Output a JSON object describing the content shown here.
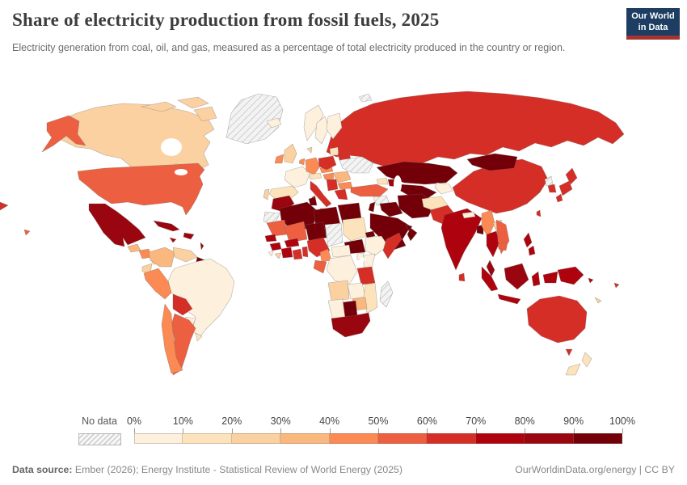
{
  "header": {
    "title": "Share of electricity production from fossil fuels, 2025",
    "subtitle": "Electricity generation from coal, oil, and gas, measured as a percentage of total electricity produced in the country or region."
  },
  "logo": {
    "line1": "Our World",
    "line2": "in Data",
    "bg_color": "#1d3d63",
    "stripe_color": "#a5332f"
  },
  "footer": {
    "source_label": "Data source:",
    "source_text": " Ember (2026); Energy Institute - Statistical Review of World Energy (2025)",
    "link_text": "OurWorldinData.org/energy | CC BY"
  },
  "chart_data": {
    "type": "choropleth",
    "title": "Share of electricity production from fossil fuels, 2025",
    "unit": "%",
    "projection": "world map, equirectangular style, Antarctica omitted",
    "legend": {
      "no_data_label": "No data",
      "ticks": [
        "0%",
        "10%",
        "20%",
        "30%",
        "40%",
        "50%",
        "60%",
        "70%",
        "80%",
        "90%",
        "100%"
      ],
      "bin_colors": [
        "#fdf0dd",
        "#fce3bc",
        "#fbd1a2",
        "#fab77e",
        "#fb8a55",
        "#ec6041",
        "#d52e27",
        "#ae030e",
        "#9a0610",
        "#730009"
      ],
      "no_data_pattern": "gray diagonal hatch"
    },
    "regions": [
      {
        "id": "russia",
        "name": "Russia",
        "bin": 6,
        "range": "60-70%"
      },
      {
        "id": "canada",
        "name": "Canada",
        "bin": 2,
        "range": "20-30%"
      },
      {
        "id": "canada-arctic-1",
        "name": "Canada (Arctic islands)",
        "bin": 2,
        "range": "20-30%"
      },
      {
        "id": "canada-arctic-2",
        "name": "Canada (Arctic islands)",
        "bin": 2,
        "range": "20-30%"
      },
      {
        "id": "baffin-island",
        "name": "Canada (Baffin Island)",
        "bin": 2,
        "range": "20-30%"
      },
      {
        "id": "greenland",
        "name": "Greenland",
        "bin": null,
        "range": "No data"
      },
      {
        "id": "svalbard",
        "name": "Svalbard",
        "bin": null,
        "range": "No data"
      },
      {
        "id": "alaska",
        "name": "United States (Alaska)",
        "bin": 5,
        "range": "50-60%"
      },
      {
        "id": "united-states",
        "name": "United States",
        "bin": 5,
        "range": "50-60%"
      },
      {
        "id": "hawaii",
        "name": "United States (Hawaii)",
        "bin": 5,
        "range": "50-60%"
      },
      {
        "id": "mexico",
        "name": "Mexico",
        "bin": 8,
        "range": "80-90%"
      },
      {
        "id": "guatemala",
        "name": "Guatemala",
        "bin": 3,
        "range": "30-40%"
      },
      {
        "id": "nicaragua",
        "name": "Nicaragua & Honduras",
        "bin": 4,
        "range": "40-50%"
      },
      {
        "id": "panama",
        "name": "Panama & Costa Rica",
        "bin": 1,
        "range": "10-20%"
      },
      {
        "id": "cuba",
        "name": "Cuba",
        "bin": 8,
        "range": "80-90%"
      },
      {
        "id": "hispaniola",
        "name": "Dominican Republic & Haiti",
        "bin": 8,
        "range": "80-90%"
      },
      {
        "id": "jamaica",
        "name": "Jamaica",
        "bin": 7,
        "range": "70-80%"
      },
      {
        "id": "lesser-antilles",
        "name": "Lesser Antilles",
        "bin": 8,
        "range": "80-90%"
      },
      {
        "id": "colombia",
        "name": "Colombia",
        "bin": 3,
        "range": "30-40%"
      },
      {
        "id": "venezuela",
        "name": "Venezuela",
        "bin": 2,
        "range": "20-30%"
      },
      {
        "id": "guyana-suriname",
        "name": "Guyana",
        "bin": 9,
        "range": "90-100%"
      },
      {
        "id": "brazil",
        "name": "Brazil",
        "bin": 0,
        "range": "0-10%"
      },
      {
        "id": "ecuador",
        "name": "Ecuador",
        "bin": 2,
        "range": "20-30%"
      },
      {
        "id": "peru",
        "name": "Peru",
        "bin": 4,
        "range": "40-50%"
      },
      {
        "id": "bolivia",
        "name": "Bolivia",
        "bin": 6,
        "range": "60-70%"
      },
      {
        "id": "paraguay",
        "name": "Paraguay",
        "bin": 0,
        "range": "0-10%"
      },
      {
        "id": "uruguay",
        "name": "Uruguay",
        "bin": 1,
        "range": "10-20%"
      },
      {
        "id": "argentina",
        "name": "Argentina",
        "bin": 5,
        "range": "50-60%"
      },
      {
        "id": "chile",
        "name": "Chile",
        "bin": 4,
        "range": "40-50%"
      },
      {
        "id": "iceland",
        "name": "Iceland",
        "bin": 0,
        "range": "0-10%"
      },
      {
        "id": "norway",
        "name": "Norway",
        "bin": 0,
        "range": "0-10%"
      },
      {
        "id": "sweden",
        "name": "Sweden",
        "bin": 0,
        "range": "0-10%"
      },
      {
        "id": "finland",
        "name": "Finland",
        "bin": 0,
        "range": "0-10%"
      },
      {
        "id": "denmark",
        "name": "Denmark",
        "bin": 2,
        "range": "20-30%"
      },
      {
        "id": "united-kingdom",
        "name": "United Kingdom",
        "bin": 2,
        "range": "20-30%"
      },
      {
        "id": "ireland",
        "name": "Ireland",
        "bin": 4,
        "range": "40-50%"
      },
      {
        "id": "france",
        "name": "France",
        "bin": 0,
        "range": "0-10%"
      },
      {
        "id": "spain",
        "name": "Spain",
        "bin": 1,
        "range": "10-20%"
      },
      {
        "id": "portugal",
        "name": "Portugal",
        "bin": 2,
        "range": "20-30%"
      },
      {
        "id": "germany",
        "name": "Germany",
        "bin": 4,
        "range": "40-50%"
      },
      {
        "id": "benelux",
        "name": "Netherlands & Belgium",
        "bin": 4,
        "range": "40-50%"
      },
      {
        "id": "switzerland-austria",
        "name": "Switzerland & Austria",
        "bin": 1,
        "range": "10-20%"
      },
      {
        "id": "czech-slovakia",
        "name": "Czechia & Slovakia",
        "bin": 4,
        "range": "40-50%"
      },
      {
        "id": "poland",
        "name": "Poland",
        "bin": 6,
        "range": "60-70%"
      },
      {
        "id": "baltics",
        "name": "Baltic states",
        "bin": 1,
        "range": "10-20%"
      },
      {
        "id": "belarus",
        "name": "Belarus",
        "bin": 6,
        "range": "60-70%"
      },
      {
        "id": "hungary",
        "name": "Hungary",
        "bin": 4,
        "range": "40-50%"
      },
      {
        "id": "romania",
        "name": "Romania",
        "bin": 3,
        "range": "30-40%"
      },
      {
        "id": "bulgaria",
        "name": "Bulgaria",
        "bin": 4,
        "range": "40-50%"
      },
      {
        "id": "serbia-balkans",
        "name": "Serbia & Western Balkans",
        "bin": 6,
        "range": "60-70%"
      },
      {
        "id": "greece",
        "name": "Greece",
        "bin": 6,
        "range": "60-70%"
      },
      {
        "id": "italy",
        "name": "Italy",
        "bin": 6,
        "range": "60-70%"
      },
      {
        "id": "sicily",
        "name": "Italy (Sicily)",
        "bin": 6,
        "range": "60-70%"
      },
      {
        "id": "sardinia",
        "name": "Italy (Sardinia)",
        "bin": 6,
        "range": "60-70%"
      },
      {
        "id": "ukraine",
        "name": "Ukraine",
        "bin": null,
        "range": "No data"
      },
      {
        "id": "kazakhstan",
        "name": "Kazakhstan",
        "bin": 9,
        "range": "90-100%"
      },
      {
        "id": "uzbekistan-turkmenistan",
        "name": "Uzbekistan & Turkmenistan",
        "bin": 9,
        "range": "90-100%"
      },
      {
        "id": "kyrgyzstan-tajikistan",
        "name": "Kyrgyzstan & Tajikistan",
        "bin": 0,
        "range": "0-10%"
      },
      {
        "id": "georgia-armenia",
        "name": "Georgia & Armenia",
        "bin": 1,
        "range": "10-20%"
      },
      {
        "id": "azerbaijan",
        "name": "Azerbaijan",
        "bin": 8,
        "range": "80-90%"
      },
      {
        "id": "turkey",
        "name": "Turkey",
        "bin": 5,
        "range": "50-60%"
      },
      {
        "id": "syria",
        "name": "Syria",
        "bin": null,
        "range": "No data"
      },
      {
        "id": "israel-jordan",
        "name": "Israel & Jordan",
        "bin": 9,
        "range": "90-100%"
      },
      {
        "id": "iraq",
        "name": "Iraq",
        "bin": 9,
        "range": "90-100%"
      },
      {
        "id": "iran",
        "name": "Iran",
        "bin": 9,
        "range": "90-100%"
      },
      {
        "id": "saudi-arabia",
        "name": "Saudi Arabia",
        "bin": 9,
        "range": "90-100%"
      },
      {
        "id": "yemen",
        "name": "Yemen",
        "bin": 9,
        "range": "90-100%"
      },
      {
        "id": "oman",
        "name": "Oman",
        "bin": 9,
        "range": "90-100%"
      },
      {
        "id": "uae-qatar",
        "name": "UAE & Qatar",
        "bin": 9,
        "range": "90-100%"
      },
      {
        "id": "afghanistan",
        "name": "Afghanistan",
        "bin": 1,
        "range": "10-20%"
      },
      {
        "id": "pakistan",
        "name": "Pakistan",
        "bin": 6,
        "range": "60-70%"
      },
      {
        "id": "india",
        "name": "India",
        "bin": 7,
        "range": "70-80%"
      },
      {
        "id": "nepal",
        "name": "Nepal",
        "bin": 0,
        "range": "0-10%"
      },
      {
        "id": "bangladesh",
        "name": "Bangladesh",
        "bin": 9,
        "range": "90-100%"
      },
      {
        "id": "sri-lanka",
        "name": "Sri Lanka",
        "bin": 6,
        "range": "60-70%"
      },
      {
        "id": "china",
        "name": "China",
        "bin": 6,
        "range": "60-70%"
      },
      {
        "id": "mongolia",
        "name": "Mongolia",
        "bin": 9,
        "range": "90-100%"
      },
      {
        "id": "north-korea",
        "name": "North Korea",
        "bin": null,
        "range": "No data"
      },
      {
        "id": "south-korea",
        "name": "South Korea",
        "bin": 6,
        "range": "60-70%"
      },
      {
        "id": "japan-north",
        "name": "Japan (Hokkaido)",
        "bin": 6,
        "range": "60-70%"
      },
      {
        "id": "japan-main",
        "name": "Japan (Honshu)",
        "bin": 6,
        "range": "60-70%"
      },
      {
        "id": "japan-south",
        "name": "Japan (Kyushu)",
        "bin": 6,
        "range": "60-70%"
      },
      {
        "id": "taiwan",
        "name": "Taiwan",
        "bin": 6,
        "range": "60-70%"
      },
      {
        "id": "myanmar",
        "name": "Myanmar",
        "bin": 4,
        "range": "40-50%"
      },
      {
        "id": "laos",
        "name": "Laos",
        "bin": 2,
        "range": "20-30%"
      },
      {
        "id": "thailand",
        "name": "Thailand",
        "bin": 7,
        "range": "70-80%"
      },
      {
        "id": "vietnam",
        "name": "Vietnam",
        "bin": 5,
        "range": "50-60%"
      },
      {
        "id": "cambodia",
        "name": "Cambodia",
        "bin": 5,
        "range": "50-60%"
      },
      {
        "id": "malaysia",
        "name": "Malaysia",
        "bin": 8,
        "range": "80-90%"
      },
      {
        "id": "philippines-north",
        "name": "Philippines (Luzon)",
        "bin": 7,
        "range": "70-80%"
      },
      {
        "id": "philippines-south",
        "name": "Philippines (Mindanao)",
        "bin": 7,
        "range": "70-80%"
      },
      {
        "id": "sumatra",
        "name": "Indonesia (Sumatra)",
        "bin": 7,
        "range": "70-80%"
      },
      {
        "id": "java",
        "name": "Indonesia (Java)",
        "bin": 7,
        "range": "70-80%"
      },
      {
        "id": "borneo",
        "name": "Malaysia/Indonesia (Borneo)",
        "bin": 8,
        "range": "80-90%"
      },
      {
        "id": "sulawesi",
        "name": "Indonesia (Sulawesi)",
        "bin": 7,
        "range": "70-80%"
      },
      {
        "id": "indonesia-east",
        "name": "Indonesia (Papua)",
        "bin": 7,
        "range": "70-80%"
      },
      {
        "id": "papua-new-guinea",
        "name": "Papua New Guinea",
        "bin": 7,
        "range": "70-80%"
      },
      {
        "id": "solomon-islands",
        "name": "Solomon Islands",
        "bin": 7,
        "range": "70-80%"
      },
      {
        "id": "morocco",
        "name": "Morocco",
        "bin": 8,
        "range": "80-90%"
      },
      {
        "id": "western-sahara",
        "name": "Western Sahara",
        "bin": null,
        "range": "No data"
      },
      {
        "id": "algeria",
        "name": "Algeria",
        "bin": 9,
        "range": "90-100%"
      },
      {
        "id": "tunisia",
        "name": "Tunisia",
        "bin": 9,
        "range": "90-100%"
      },
      {
        "id": "libya",
        "name": "Libya",
        "bin": 9,
        "range": "90-100%"
      },
      {
        "id": "egypt",
        "name": "Egypt",
        "bin": 9,
        "range": "90-100%"
      },
      {
        "id": "mauritania",
        "name": "Mauritania",
        "bin": 5,
        "range": "50-60%"
      },
      {
        "id": "mali",
        "name": "Mali",
        "bin": 5,
        "range": "50-60%"
      },
      {
        "id": "senegal",
        "name": "Senegal",
        "bin": 7,
        "range": "70-80%"
      },
      {
        "id": "guinea",
        "name": "Guinea",
        "bin": 7,
        "range": "70-80%"
      },
      {
        "id": "sierra-leone",
        "name": "Sierra Leone",
        "bin": 0,
        "range": "0-10%"
      },
      {
        "id": "liberia",
        "name": "Liberia",
        "bin": 2,
        "range": "20-30%"
      },
      {
        "id": "ivory-coast",
        "name": "Côte d'Ivoire",
        "bin": 7,
        "range": "70-80%"
      },
      {
        "id": "ghana",
        "name": "Ghana",
        "bin": 6,
        "range": "60-70%"
      },
      {
        "id": "burkina-faso",
        "name": "Burkina Faso",
        "bin": 7,
        "range": "70-80%"
      },
      {
        "id": "benin-togo",
        "name": "Benin & Togo",
        "bin": 6,
        "range": "60-70%"
      },
      {
        "id": "niger",
        "name": "Niger",
        "bin": 9,
        "range": "90-100%"
      },
      {
        "id": "nigeria",
        "name": "Nigeria",
        "bin": 6,
        "range": "60-70%"
      },
      {
        "id": "chad",
        "name": "Chad",
        "bin": null,
        "range": "No data"
      },
      {
        "id": "sudan",
        "name": "Sudan",
        "bin": 1,
        "range": "10-20%"
      },
      {
        "id": "eritrea",
        "name": "Eritrea",
        "bin": 9,
        "range": "90-100%"
      },
      {
        "id": "south-sudan",
        "name": "South Sudan",
        "bin": 9,
        "range": "90-100%"
      },
      {
        "id": "ethiopia",
        "name": "Ethiopia",
        "bin": 0,
        "range": "0-10%"
      },
      {
        "id": "somalia",
        "name": "Somalia",
        "bin": 6,
        "range": "60-70%"
      },
      {
        "id": "kenya",
        "name": "Kenya",
        "bin": 0,
        "range": "0-10%"
      },
      {
        "id": "uganda",
        "name": "Uganda",
        "bin": 0,
        "range": "0-10%"
      },
      {
        "id": "tanzania",
        "name": "Tanzania",
        "bin": 6,
        "range": "60-70%"
      },
      {
        "id": "cameroon",
        "name": "Cameroon",
        "bin": 4,
        "range": "40-50%"
      },
      {
        "id": "central-african-republic",
        "name": "Central African Republic",
        "bin": 0,
        "range": "0-10%"
      },
      {
        "id": "gabon-congo",
        "name": "Gabon & Congo",
        "bin": 5,
        "range": "50-60%"
      },
      {
        "id": "dr-congo",
        "name": "Democratic Republic of Congo",
        "bin": 0,
        "range": "0-10%"
      },
      {
        "id": "angola",
        "name": "Angola",
        "bin": 2,
        "range": "20-30%"
      },
      {
        "id": "zambia",
        "name": "Zambia",
        "bin": 0,
        "range": "0-10%"
      },
      {
        "id": "mozambique",
        "name": "Mozambique",
        "bin": 1,
        "range": "10-20%"
      },
      {
        "id": "zimbabwe",
        "name": "Zimbabwe",
        "bin": 3,
        "range": "30-40%"
      },
      {
        "id": "botswana",
        "name": "Botswana",
        "bin": 9,
        "range": "90-100%"
      },
      {
        "id": "namibia",
        "name": "Namibia",
        "bin": 0,
        "range": "0-10%"
      },
      {
        "id": "south-africa",
        "name": "South Africa",
        "bin": 8,
        "range": "80-90%"
      },
      {
        "id": "madagascar",
        "name": "Madagascar",
        "bin": null,
        "range": "No data"
      },
      {
        "id": "australia",
        "name": "Australia",
        "bin": 6,
        "range": "60-70%"
      },
      {
        "id": "tasmania",
        "name": "Australia (Tasmania)",
        "bin": 6,
        "range": "60-70%"
      },
      {
        "id": "new-zealand-north",
        "name": "New Zealand (North Island)",
        "bin": 1,
        "range": "10-20%"
      },
      {
        "id": "new-zealand-south",
        "name": "New Zealand (South Island)",
        "bin": 1,
        "range": "10-20%"
      },
      {
        "id": "fiji",
        "name": "Fiji",
        "bin": 6,
        "range": "60-70%"
      },
      {
        "id": "new-caledonia",
        "name": "New Caledonia",
        "bin": 2,
        "range": "20-30%"
      },
      {
        "id": "chukotka-wrap",
        "name": "Russia (Chukotka, wrapped)",
        "bin": 6,
        "range": "60-70%"
      }
    ]
  }
}
